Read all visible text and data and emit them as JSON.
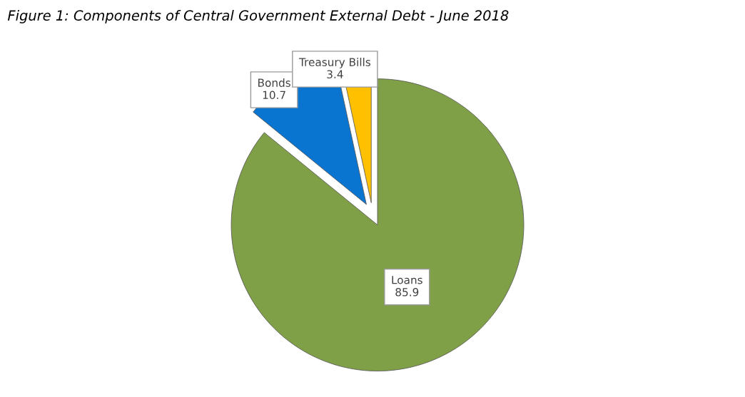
{
  "chart_data": {
    "type": "pie",
    "title": "Figure 1: Components of Central Government External Debt - June 2018",
    "categories": [
      "Loans",
      "Bonds",
      "Treasury Bills"
    ],
    "values": [
      85.9,
      10.7,
      3.4
    ],
    "colors": [
      "#7fa046",
      "#0a75d0",
      "#ffc000"
    ],
    "data_labels": true,
    "legend": false
  }
}
